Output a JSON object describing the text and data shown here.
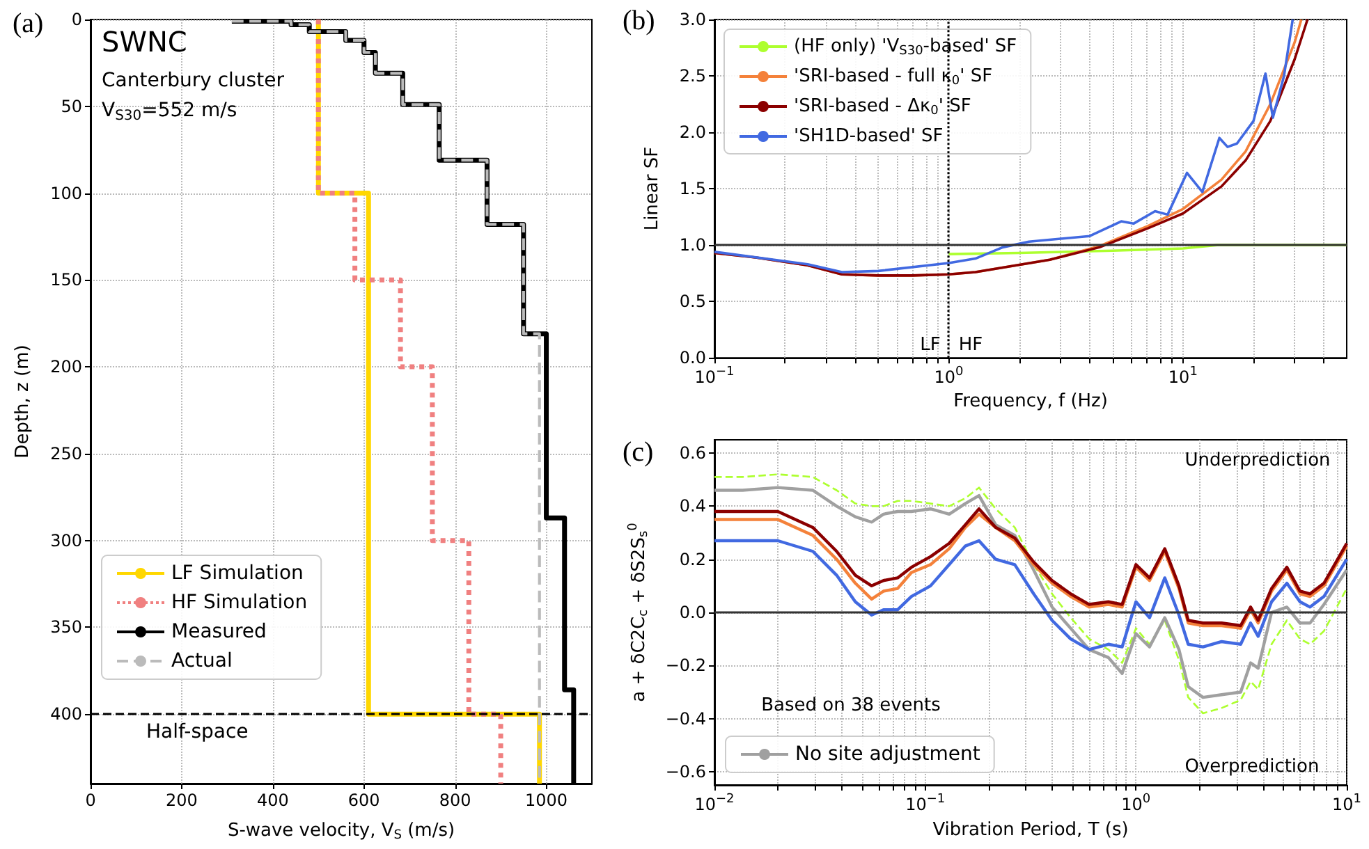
{
  "chart_data": [
    {
      "type": "line",
      "title": "(a)",
      "xlabel": "S-wave velocity, V$_{S}$ (m/s)",
      "ylabel": "Depth, z (m)",
      "annotations": [
        "SWNC",
        "Canterbury cluster",
        "V$_{S30}$=552 m/s"
      ],
      "xlim": [
        0,
        1100
      ],
      "xticks": [
        0,
        200,
        400,
        600,
        800,
        1000
      ],
      "ylim": [
        440,
        0
      ],
      "yticks": [
        0,
        50,
        100,
        150,
        200,
        250,
        300,
        350,
        400
      ],
      "grid": true,
      "legend": "bottom left",
      "ref_lines": [
        {
          "axis": "y",
          "value": 400,
          "label": "Half-space",
          "color": "#000000",
          "line_style": "dashed"
        }
      ],
      "series": [
        {
          "name": "LF Simulation",
          "color": "#ffd700",
          "line_style": "solid",
          "x": [
            500,
            500,
            610,
            610,
            985,
            985
          ],
          "values": [
            0,
            100,
            100,
            400,
            400,
            440
          ]
        },
        {
          "name": "HF Simulation",
          "color": "#f08080",
          "line_style": "dotted",
          "x": [
            500,
            500,
            580,
            580,
            680,
            680,
            750,
            750,
            830,
            830,
            900,
            900
          ],
          "values": [
            0,
            100,
            100,
            150,
            150,
            200,
            200,
            300,
            300,
            400,
            400,
            440
          ]
        },
        {
          "name": "Measured",
          "color": "#000000",
          "line_style": "solid",
          "x": [
            310,
            440,
            440,
            480,
            480,
            560,
            560,
            600,
            600,
            625,
            625,
            685,
            685,
            765,
            765,
            870,
            870,
            950,
            950,
            1000,
            1000,
            1040,
            1040,
            1060,
            1060
          ],
          "values": [
            1,
            1,
            3,
            3,
            7,
            7,
            12,
            12,
            19,
            19,
            31,
            31,
            49,
            49,
            81,
            81,
            118,
            118,
            181,
            181,
            287,
            287,
            386,
            386,
            440
          ]
        },
        {
          "name": "Actual",
          "color": "#bbbbbb",
          "line_style": "dashed",
          "x": [
            310,
            440,
            440,
            480,
            480,
            560,
            560,
            600,
            600,
            625,
            625,
            685,
            685,
            765,
            765,
            870,
            870,
            950,
            950,
            985,
            985
          ],
          "values": [
            1,
            1,
            3,
            3,
            7,
            7,
            12,
            12,
            19,
            19,
            31,
            31,
            49,
            49,
            81,
            81,
            118,
            118,
            181,
            181,
            440
          ]
        }
      ]
    },
    {
      "type": "line",
      "title": "(b)",
      "xlabel": "Frequency, f (Hz)",
      "ylabel": "Linear SF",
      "log": "x",
      "annotations": [
        "LF",
        "HF"
      ],
      "xlim": [
        0.1,
        50
      ],
      "xticks": [
        {
          "value": 0.1,
          "label": "10$^{−1}$"
        },
        {
          "value": 0.2,
          "label": null
        },
        {
          "value": 0.3,
          "label": null
        },
        {
          "value": 0.4,
          "label": null
        },
        {
          "value": 0.5,
          "label": null
        },
        {
          "value": 0.6,
          "label": null
        },
        {
          "value": 0.7,
          "label": null
        },
        {
          "value": 0.8,
          "label": null
        },
        {
          "value": 0.9,
          "label": null
        },
        {
          "value": 1,
          "label": "10$^{0}$"
        },
        {
          "value": 2,
          "label": null
        },
        {
          "value": 3,
          "label": null
        },
        {
          "value": 4,
          "label": null
        },
        {
          "value": 5,
          "label": null
        },
        {
          "value": 6,
          "label": null
        },
        {
          "value": 7,
          "label": null
        },
        {
          "value": 8,
          "label": null
        },
        {
          "value": 9,
          "label": null
        },
        {
          "value": 10,
          "label": "10$^{1}$"
        },
        {
          "value": 20,
          "label": null
        },
        {
          "value": 30,
          "label": null
        },
        {
          "value": 40,
          "label": null
        }
      ],
      "ylim": [
        0,
        3
      ],
      "yticks": [
        {
          "value": 0,
          "label": "0.0"
        },
        0.5,
        {
          "value": 1,
          "label": "1.0"
        },
        1.5,
        {
          "value": 2,
          "label": "2.0"
        },
        2.5,
        {
          "value": 3,
          "label": "3.0"
        }
      ],
      "grid": true,
      "legend": "top left",
      "ref_lines": [
        {
          "axis": "x",
          "value": 1,
          "color": "#000000",
          "line_style": "dotted"
        },
        {
          "axis": "y",
          "value": 1,
          "color": "#333333",
          "line_style": "solid"
        }
      ],
      "series": [
        {
          "name": "(HF only) 'V$_{S30}$-based' SF",
          "color": "#adff2f",
          "x": [
            1,
            2,
            5,
            10,
            14,
            50
          ],
          "values": [
            0.92,
            0.93,
            0.95,
            0.97,
            1.0,
            1.0
          ]
        },
        {
          "name": "'SRI-based - full κ$_{0}$' SF",
          "color": "#f4813a",
          "x": [
            0.1,
            0.15,
            0.25,
            0.35,
            0.5,
            0.7,
            1,
            1.3,
            1.7,
            2.7,
            4.4,
            7.1,
            10,
            14.6,
            18.5,
            23.6,
            30,
            32
          ],
          "values": [
            0.93,
            0.89,
            0.82,
            0.74,
            0.73,
            0.73,
            0.74,
            0.76,
            0.8,
            0.87,
            0.99,
            1.17,
            1.32,
            1.58,
            1.83,
            2.25,
            2.8,
            3.0
          ]
        },
        {
          "name": "'SRI-based - Δκ$_{0}$' SF",
          "color": "#8b0000",
          "x": [
            0.1,
            0.15,
            0.25,
            0.35,
            0.5,
            0.7,
            1,
            1.3,
            1.7,
            2.7,
            4.4,
            7.1,
            10,
            14.6,
            18.5,
            23.6,
            30,
            34
          ],
          "values": [
            0.93,
            0.89,
            0.82,
            0.74,
            0.73,
            0.73,
            0.74,
            0.76,
            0.8,
            0.87,
            0.98,
            1.15,
            1.28,
            1.52,
            1.75,
            2.1,
            2.65,
            3.0
          ]
        },
        {
          "name": "'SH1D-based' SF",
          "color": "#4169e1",
          "x": [
            0.1,
            0.25,
            0.35,
            0.5,
            1,
            1.3,
            1.7,
            2.2,
            4,
            5.45,
            6.15,
            7.6,
            8.6,
            10.4,
            12.1,
            14.3,
            15.5,
            17,
            20,
            22.5,
            24.2,
            27,
            29.4
          ],
          "values": [
            0.94,
            0.83,
            0.76,
            0.77,
            0.84,
            0.88,
            0.98,
            1.03,
            1.08,
            1.21,
            1.19,
            1.3,
            1.27,
            1.64,
            1.47,
            1.95,
            1.87,
            1.9,
            2.1,
            2.52,
            2.13,
            2.5,
            3.0
          ]
        }
      ]
    },
    {
      "type": "line",
      "title": "(c)",
      "xlabel": "Vibration Period, T (s)",
      "ylabel": "a + δC2C$_{c}$ + δS2S$_{s}$$^{0}$",
      "log": "x",
      "annotations": [
        "Underprediction",
        "Overprediction",
        "Based on 38 events"
      ],
      "xlim": [
        0.01,
        10
      ],
      "xticks": [
        {
          "value": 0.01,
          "label": "10$^{−2}$"
        },
        {
          "value": 0.02,
          "label": null
        },
        {
          "value": 0.03,
          "label": null
        },
        {
          "value": 0.04,
          "label": null
        },
        {
          "value": 0.05,
          "label": null
        },
        {
          "value": 0.06,
          "label": null
        },
        {
          "value": 0.07,
          "label": null
        },
        {
          "value": 0.08,
          "label": null
        },
        {
          "value": 0.09,
          "label": null
        },
        {
          "value": 0.1,
          "label": "10$^{−1}$"
        },
        {
          "value": 0.2,
          "label": null
        },
        {
          "value": 0.3,
          "label": null
        },
        {
          "value": 0.4,
          "label": null
        },
        {
          "value": 0.5,
          "label": null
        },
        {
          "value": 0.6,
          "label": null
        },
        {
          "value": 0.7,
          "label": null
        },
        {
          "value": 0.8,
          "label": null
        },
        {
          "value": 0.9,
          "label": null
        },
        {
          "value": 1,
          "label": "10$^{0}$"
        },
        {
          "value": 2,
          "label": null
        },
        {
          "value": 3,
          "label": null
        },
        {
          "value": 4,
          "label": null
        },
        {
          "value": 5,
          "label": null
        },
        {
          "value": 6,
          "label": null
        },
        {
          "value": 7,
          "label": null
        },
        {
          "value": 8,
          "label": null
        },
        {
          "value": 9,
          "label": null
        },
        {
          "value": 10,
          "label": "10$^{1}$"
        }
      ],
      "ylim": [
        -0.65,
        0.65
      ],
      "yticks": [
        {
          "value": -0.6,
          "label": "−0.6"
        },
        {
          "value": -0.4,
          "label": "−0.4"
        },
        {
          "value": -0.2,
          "label": "−0.2"
        },
        {
          "value": 0,
          "label": "0.0"
        },
        0.2,
        0.4,
        0.6
      ],
      "grid": true,
      "legend": "bottom left",
      "ref_lines": [
        {
          "axis": "y",
          "value": 0,
          "color": "#333333",
          "line_style": "solid"
        }
      ],
      "x": [
        0.01,
        0.0136,
        0.02,
        0.0293,
        0.038,
        0.0466,
        0.0557,
        0.0634,
        0.074,
        0.086,
        0.106,
        0.13,
        0.155,
        0.18,
        0.216,
        0.266,
        0.327,
        0.4,
        0.49,
        0.6,
        0.74,
        0.86,
        1.0,
        1.16,
        1.37,
        1.6,
        1.77,
        2.08,
        2.55,
        3.14,
        3.5,
        3.8,
        4.4,
        5.2,
        6.0,
        6.7,
        7.8,
        10
      ],
      "series": [
        {
          "color": "#adff2f",
          "line_style": "dashed",
          "values": [
            0.51,
            0.51,
            0.52,
            0.51,
            0.46,
            0.41,
            0.4,
            0.4,
            0.42,
            0.42,
            0.41,
            0.4,
            0.43,
            0.47,
            0.39,
            0.32,
            0.18,
            0.07,
            -0.02,
            -0.1,
            -0.14,
            -0.19,
            -0.06,
            -0.12,
            -0.03,
            -0.18,
            -0.32,
            -0.38,
            -0.36,
            -0.33,
            -0.26,
            -0.29,
            -0.12,
            -0.03,
            -0.1,
            -0.12,
            -0.07,
            0.09
          ]
        },
        {
          "name": "No site adjustment",
          "color": "#a0a0a0",
          "line_style": "solid",
          "values": [
            0.46,
            0.46,
            0.47,
            0.46,
            0.4,
            0.36,
            0.34,
            0.37,
            0.38,
            0.38,
            0.39,
            0.37,
            0.41,
            0.44,
            0.33,
            0.29,
            0.16,
            0.02,
            -0.06,
            -0.14,
            -0.17,
            -0.23,
            -0.08,
            -0.13,
            -0.02,
            -0.14,
            -0.28,
            -0.32,
            -0.31,
            -0.3,
            -0.19,
            -0.21,
            0.0,
            0.02,
            -0.04,
            -0.04,
            0.03,
            0.16
          ]
        },
        {
          "color": "#f4813a",
          "line_style": "solid",
          "values": [
            0.35,
            0.35,
            0.35,
            0.29,
            0.2,
            0.11,
            0.05,
            0.08,
            0.09,
            0.15,
            0.18,
            0.24,
            0.32,
            0.37,
            0.32,
            0.27,
            0.18,
            0.11,
            0.06,
            0.02,
            0.03,
            0.02,
            0.17,
            0.12,
            0.23,
            0.09,
            -0.04,
            -0.05,
            -0.05,
            -0.06,
            0.01,
            -0.04,
            0.08,
            0.16,
            0.07,
            0.06,
            0.1,
            0.25
          ]
        },
        {
          "color": "#8b0000",
          "line_style": "solid",
          "values": [
            0.38,
            0.38,
            0.38,
            0.32,
            0.23,
            0.14,
            0.1,
            0.12,
            0.13,
            0.17,
            0.21,
            0.26,
            0.33,
            0.39,
            0.32,
            0.28,
            0.19,
            0.12,
            0.07,
            0.03,
            0.04,
            0.03,
            0.18,
            0.13,
            0.24,
            0.1,
            -0.03,
            -0.04,
            -0.04,
            -0.05,
            0.02,
            -0.03,
            0.09,
            0.17,
            0.08,
            0.07,
            0.11,
            0.26
          ]
        },
        {
          "color": "#4169e1",
          "line_style": "solid",
          "values": [
            0.27,
            0.27,
            0.27,
            0.23,
            0.14,
            0.04,
            -0.01,
            0.01,
            0.01,
            0.06,
            0.1,
            0.18,
            0.25,
            0.27,
            0.2,
            0.18,
            0.07,
            -0.03,
            -0.1,
            -0.14,
            -0.12,
            -0.13,
            0.04,
            -0.02,
            0.13,
            -0.01,
            -0.12,
            -0.13,
            -0.11,
            -0.12,
            -0.04,
            -0.09,
            0.04,
            0.11,
            0.04,
            0.02,
            0.06,
            0.2
          ]
        }
      ]
    }
  ]
}
